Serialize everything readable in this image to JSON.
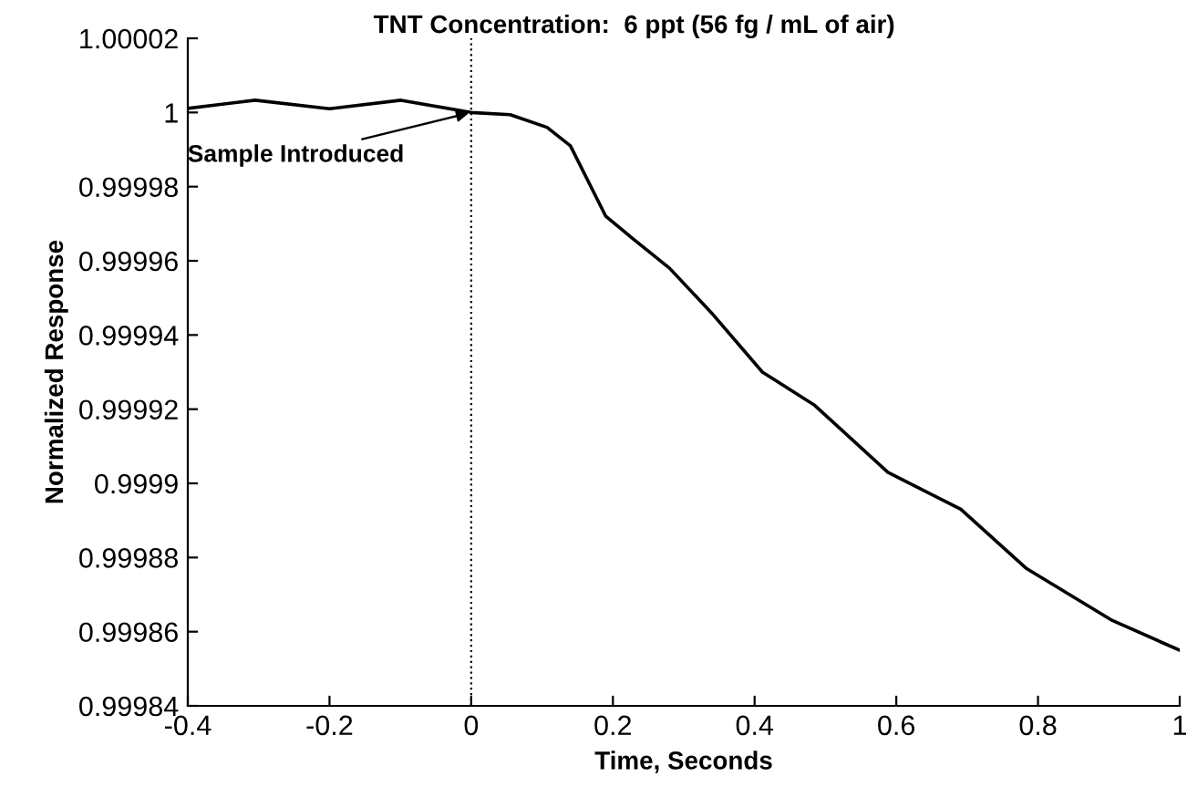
{
  "chart_data": {
    "type": "line",
    "title": "TNT Concentration:  6 ppt (56 fg / mL of air)",
    "xlabel": "Time, Seconds",
    "ylabel": "Normalized Response",
    "series": [
      {
        "color": "#000000",
        "x": [
          -0.4,
          -0.305,
          -0.2,
          -0.099,
          0,
          0.055,
          0.107,
          0.14,
          0.19,
          0.228,
          0.28,
          0.339,
          0.411,
          0.485,
          0.588,
          0.691,
          0.784,
          0.905,
          1.0
        ],
        "values": [
          1.0000011,
          1.0000033,
          1.000001,
          1.0000033,
          1.0,
          0.9999994,
          0.999996,
          0.999991,
          0.999972,
          0.999966,
          0.999958,
          0.999946,
          0.99993,
          0.999921,
          0.999903,
          0.999893,
          0.999877,
          0.999863,
          0.999855
        ]
      }
    ],
    "xlim": [
      -0.4,
      1
    ],
    "xticks": [
      -0.4,
      -0.2,
      0,
      0.2,
      0.4,
      0.6,
      0.8,
      1
    ],
    "ylim": [
      0.99984,
      1.00002
    ],
    "yticks": [
      0.99984,
      0.99986,
      0.99988,
      0.9999,
      0.99992,
      0.99994,
      0.99996,
      0.99998,
      1,
      1.00002
    ],
    "ref_lines": [
      {
        "axis": "x",
        "value": 0,
        "color": "#000000",
        "line_style": "dotted"
      }
    ],
    "annotations": [
      {
        "text": "Sample Introduced",
        "x": 0,
        "y": 1.0
      }
    ],
    "grid": false,
    "legend": false,
    "marker": "none",
    "line_style": "solid"
  }
}
